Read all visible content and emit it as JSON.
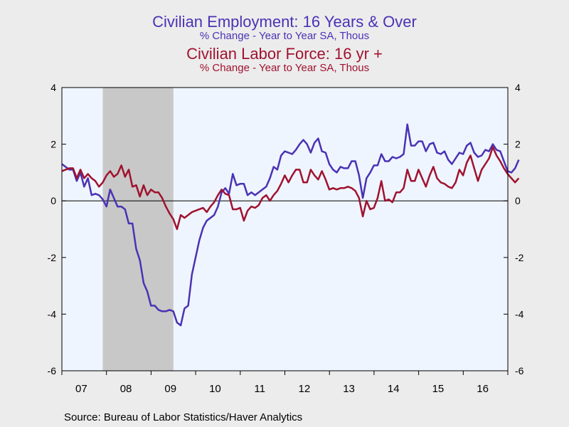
{
  "header": {
    "series1_title": "Civilian Employment: 16 Years & Over",
    "series1_subtitle": "% Change - Year to Year    SA, Thous",
    "series2_title": "Civilian Labor Force: 16 yr +",
    "series2_subtitle": "% Change - Year to Year    SA, Thous"
  },
  "source": "Source:  Bureau of Labor Statistics/Haver Analytics",
  "colors": {
    "employment": "#4b32b4",
    "labor_force": "#a0122f",
    "plot_bg": "#eef5ff",
    "recession": "#c8c8c8",
    "page_bg": "#ececec"
  },
  "chart_data": {
    "type": "line",
    "x_tick_labels": [
      "07",
      "08",
      "09",
      "10",
      "11",
      "12",
      "13",
      "14",
      "15",
      "16"
    ],
    "x_tick_years": [
      2007,
      2008,
      2009,
      2010,
      2011,
      2012,
      2013,
      2014,
      2015,
      2016
    ],
    "xlim": [
      2007.0,
      2017.0
    ],
    "ylim": [
      -6,
      4
    ],
    "y_ticks": [
      4,
      2,
      0,
      -2,
      -4,
      -6
    ],
    "y_tick_labels": [
      "4",
      "2",
      "0",
      "-2",
      "-4",
      "-6"
    ],
    "shaded_regions": [
      {
        "start": 2007.917,
        "end": 2009.5
      }
    ],
    "zero_line": true,
    "grid": false,
    "series": [
      {
        "name": "Civilian Employment: 16 Years & Over",
        "color_key": "employment",
        "start": 2007.0,
        "step": 0.0833,
        "values": [
          1.3,
          1.2,
          1.1,
          1.1,
          0.7,
          1.0,
          0.5,
          0.8,
          0.2,
          0.25,
          0.2,
          0.05,
          -0.2,
          0.4,
          0.1,
          -0.2,
          -0.2,
          -0.3,
          -0.8,
          -0.8,
          -1.7,
          -2.1,
          -2.9,
          -3.2,
          -3.7,
          -3.7,
          -3.85,
          -3.9,
          -3.9,
          -3.85,
          -3.9,
          -4.3,
          -4.4,
          -3.8,
          -3.7,
          -2.6,
          -2.0,
          -1.4,
          -0.95,
          -0.7,
          -0.6,
          -0.5,
          -0.2,
          0.3,
          0.45,
          0.25,
          0.95,
          0.55,
          0.6,
          0.6,
          0.2,
          0.3,
          0.2,
          0.3,
          0.4,
          0.5,
          0.8,
          1.2,
          1.1,
          1.6,
          1.75,
          1.7,
          1.65,
          1.8,
          2.0,
          2.15,
          2.0,
          1.7,
          2.05,
          2.2,
          1.75,
          1.7,
          1.3,
          1.1,
          1.0,
          1.2,
          1.15,
          1.15,
          1.4,
          1.4,
          0.9,
          0.1,
          0.8,
          1.0,
          1.25,
          1.25,
          1.65,
          1.4,
          1.4,
          1.55,
          1.5,
          1.55,
          1.65,
          2.7,
          1.95,
          1.95,
          2.1,
          2.1,
          1.75,
          2.0,
          2.05,
          1.7,
          1.65,
          1.75,
          1.45,
          1.3,
          1.5,
          1.7,
          1.65,
          1.95,
          2.05,
          1.7,
          1.55,
          1.6,
          1.8,
          1.75,
          2.0,
          1.8,
          1.75,
          1.4,
          1.05,
          1.0,
          1.15,
          1.45
        ]
      },
      {
        "name": "Civilian Labor Force: 16 yr +",
        "color_key": "labor_force",
        "start": 2007.0,
        "step": 0.0833,
        "values": [
          1.05,
          1.1,
          1.15,
          1.15,
          0.8,
          1.1,
          0.8,
          0.95,
          0.8,
          0.7,
          0.5,
          0.65,
          0.9,
          1.05,
          0.85,
          0.95,
          1.25,
          0.85,
          1.1,
          0.5,
          0.55,
          0.15,
          0.55,
          0.2,
          0.4,
          0.3,
          0.3,
          0.1,
          -0.2,
          -0.45,
          -0.65,
          -1.0,
          -0.5,
          -0.6,
          -0.5,
          -0.4,
          -0.35,
          -0.3,
          -0.25,
          -0.4,
          -0.2,
          -0.05,
          0.2,
          0.4,
          0.25,
          0.2,
          -0.3,
          -0.3,
          -0.25,
          -0.7,
          -0.35,
          -0.2,
          -0.25,
          -0.15,
          0.1,
          0.2,
          0.0,
          0.2,
          0.35,
          0.6,
          0.9,
          0.65,
          0.9,
          1.1,
          1.1,
          0.65,
          0.65,
          1.1,
          0.9,
          0.75,
          1.05,
          0.75,
          0.4,
          0.45,
          0.4,
          0.45,
          0.45,
          0.5,
          0.45,
          0.35,
          0.1,
          -0.55,
          0.0,
          -0.3,
          -0.25,
          0.1,
          0.7,
          0.0,
          0.05,
          -0.05,
          0.3,
          0.3,
          0.45,
          1.1,
          0.7,
          0.7,
          1.1,
          0.8,
          0.5,
          0.9,
          1.2,
          0.8,
          0.65,
          0.6,
          0.5,
          0.45,
          0.65,
          1.1,
          0.9,
          1.35,
          1.6,
          1.15,
          0.7,
          1.1,
          1.3,
          1.5,
          1.9,
          1.6,
          1.4,
          1.15,
          0.95,
          0.8,
          0.65,
          0.8
        ]
      }
    ]
  }
}
